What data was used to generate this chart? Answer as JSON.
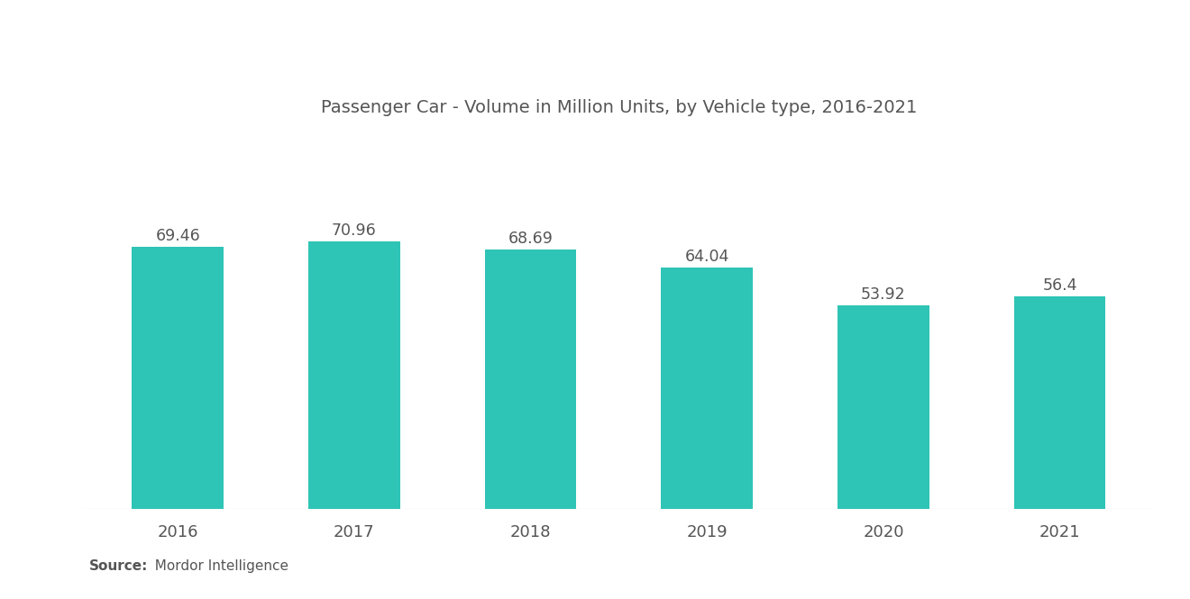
{
  "title": "Passenger Car - Volume in Million Units, by Vehicle type, 2016-2021",
  "categories": [
    "2016",
    "2017",
    "2018",
    "2019",
    "2020",
    "2021"
  ],
  "values": [
    69.46,
    70.96,
    68.69,
    64.04,
    53.92,
    56.4
  ],
  "bar_color": "#2EC4B6",
  "background_color": "#ffffff",
  "title_fontsize": 14,
  "label_fontsize": 13,
  "value_fontsize": 12.5,
  "source_bold": "Source:",
  "source_normal": "  Mordor Intelligence",
  "source_fontsize": 11,
  "ylim": [
    0,
    100
  ],
  "bar_width": 0.52,
  "text_color": "#555555"
}
